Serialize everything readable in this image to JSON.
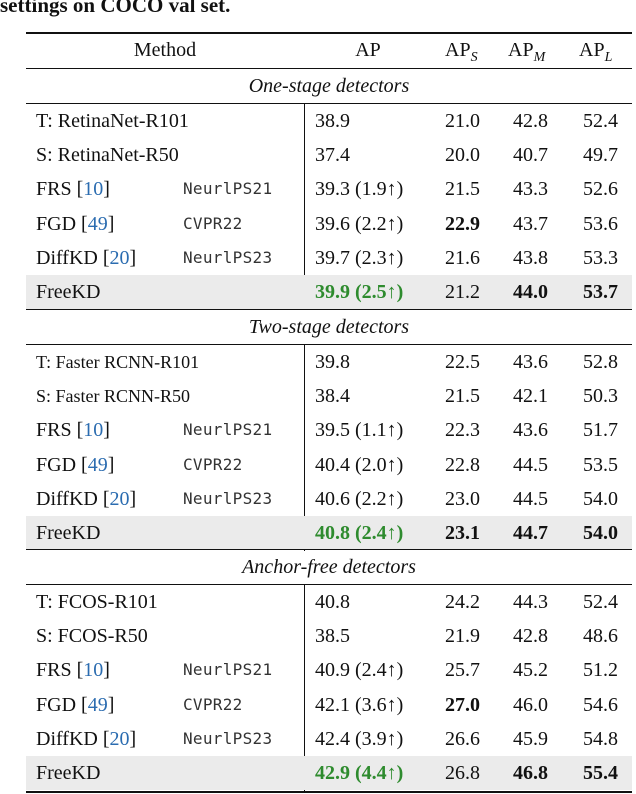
{
  "caption": "settings on COCO val set.",
  "header": {
    "method": "Method",
    "ap": "AP",
    "ap_base": "AP",
    "sub_s": "S",
    "sub_m": "M",
    "sub_l": "L"
  },
  "groups": [
    {
      "title": "One-stage detectors",
      "rows": [
        {
          "bracket_open": "",
          "method": "T: RetinaNet-R101",
          "ref": "",
          "bracket_close": "",
          "venue": "",
          "ap": "38.9",
          "gain": "",
          "aps": "21.0",
          "apm": "42.8",
          "apl": "52.4"
        },
        {
          "bracket_open": "",
          "method": "S: RetinaNet-R50",
          "ref": "",
          "bracket_close": "",
          "venue": "",
          "ap": "37.4",
          "gain": "",
          "aps": "20.0",
          "apm": "40.7",
          "apl": "49.7"
        },
        {
          "bracket_open": " [",
          "method": "FRS",
          "ref": "10",
          "bracket_close": "]",
          "venue": "NeurlPS21",
          "ap": "39.3",
          "gain": "(1.9↑)",
          "aps": "21.5",
          "apm": "43.3",
          "apl": "52.6"
        },
        {
          "bracket_open": " [",
          "method": "FGD",
          "ref": "49",
          "bracket_close": "]",
          "venue": "CVPR22",
          "ap": "39.6",
          "gain": "(2.2↑)",
          "aps": "22.9",
          "apm": "43.7",
          "apl": "53.6"
        },
        {
          "bracket_open": " [",
          "method": "DiffKD",
          "ref": "20",
          "bracket_close": "]",
          "venue": "NeurlPS23",
          "ap": "39.7",
          "gain": "(2.3↑)",
          "aps": "21.6",
          "apm": "43.8",
          "apl": "53.3"
        },
        {
          "bracket_open": "",
          "method": "FreeKD",
          "ref": "",
          "bracket_close": "",
          "venue": "",
          "ap": "39.9",
          "gain": "(2.5↑)",
          "aps": "21.2",
          "apm": "44.0",
          "apl": "53.7"
        }
      ]
    },
    {
      "title": "Two-stage detectors",
      "rows": [
        {
          "bracket_open": "",
          "method": "T: Faster RCNN-R101",
          "ref": "",
          "bracket_close": "",
          "venue": "",
          "ap": "39.8",
          "gain": "",
          "aps": "22.5",
          "apm": "43.6",
          "apl": "52.8"
        },
        {
          "bracket_open": "",
          "method": "S: Faster RCNN-R50",
          "ref": "",
          "bracket_close": "",
          "venue": "",
          "ap": "38.4",
          "gain": "",
          "aps": "21.5",
          "apm": "42.1",
          "apl": "50.3"
        },
        {
          "bracket_open": " [",
          "method": "FRS",
          "ref": "10",
          "bracket_close": "]",
          "venue": "NeurlPS21",
          "ap": "39.5",
          "gain": "(1.1↑)",
          "aps": "22.3",
          "apm": "43.6",
          "apl": "51.7"
        },
        {
          "bracket_open": " [",
          "method": "FGD",
          "ref": "49",
          "bracket_close": "]",
          "venue": "CVPR22",
          "ap": "40.4",
          "gain": "(2.0↑)",
          "aps": "22.8",
          "apm": "44.5",
          "apl": "53.5"
        },
        {
          "bracket_open": " [",
          "method": "DiffKD",
          "ref": "20",
          "bracket_close": "]",
          "venue": "NeurlPS23",
          "ap": "40.6",
          "gain": "(2.2↑)",
          "aps": "23.0",
          "apm": "44.5",
          "apl": "54.0"
        },
        {
          "bracket_open": "",
          "method": "FreeKD",
          "ref": "",
          "bracket_close": "",
          "venue": "",
          "ap": "40.8",
          "gain": "(2.4↑)",
          "aps": "23.1",
          "apm": "44.7",
          "apl": "54.0"
        }
      ]
    },
    {
      "title": "Anchor-free detectors",
      "rows": [
        {
          "bracket_open": "",
          "method": "T: FCOS-R101",
          "ref": "",
          "bracket_close": "",
          "venue": "",
          "ap": "40.8",
          "gain": "",
          "aps": "24.2",
          "apm": "44.3",
          "apl": "52.4"
        },
        {
          "bracket_open": "",
          "method": "S: FCOS-R50",
          "ref": "",
          "bracket_close": "",
          "venue": "",
          "ap": "38.5",
          "gain": "",
          "aps": "21.9",
          "apm": "42.8",
          "apl": "48.6"
        },
        {
          "bracket_open": " [",
          "method": "FRS",
          "ref": "10",
          "bracket_close": "]",
          "venue": "NeurlPS21",
          "ap": "40.9",
          "gain": "(2.4↑)",
          "aps": "25.7",
          "apm": "45.2",
          "apl": "51.2"
        },
        {
          "bracket_open": " [",
          "method": "FGD",
          "ref": "49",
          "bracket_close": "]",
          "venue": "CVPR22",
          "ap": "42.1",
          "gain": "(3.6↑)",
          "aps": "27.0",
          "apm": "46.0",
          "apl": "54.6"
        },
        {
          "bracket_open": " [",
          "method": "DiffKD",
          "ref": "20",
          "bracket_close": "]",
          "venue": "NeurlPS23",
          "ap": "42.4",
          "gain": "(3.9↑)",
          "aps": "26.6",
          "apm": "45.9",
          "apl": "54.8"
        },
        {
          "bracket_open": "",
          "method": "FreeKD",
          "ref": "",
          "bracket_close": "",
          "venue": "",
          "ap": "42.9",
          "gain": "(4.4↑)",
          "aps": "26.8",
          "apm": "46.8",
          "apl": "55.4"
        }
      ]
    }
  ],
  "colors": {
    "highlight": "#2e8b2e",
    "reference": "#2b6cb0",
    "shading": "#ebebeb"
  }
}
